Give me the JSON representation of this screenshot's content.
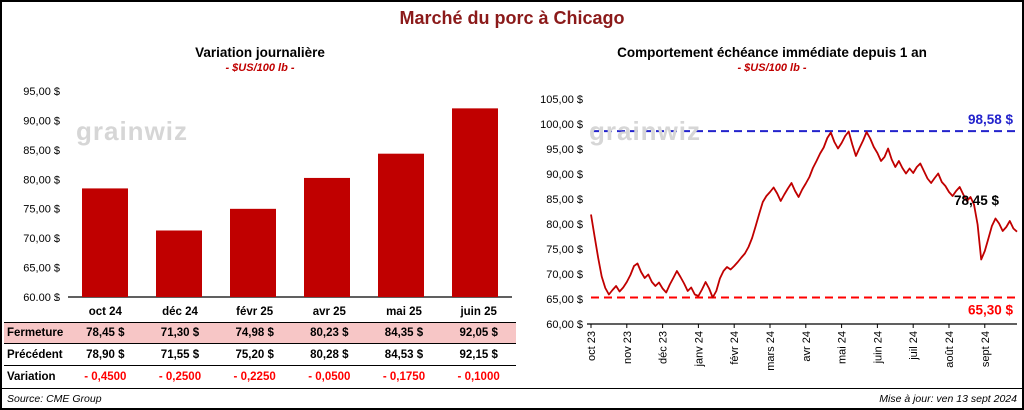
{
  "page": {
    "title": "Marché du porc à Chicago",
    "source": "Source: CME Group",
    "updated": "Mise à jour: ven 13 sept 2024"
  },
  "watermark": "grainwiz",
  "colors": {
    "title_red": "#8B1A1A",
    "accent": "#C00000",
    "bright_red": "#FF0000",
    "blue": "#2323CC",
    "fermeture_bg": "#F7C6C6",
    "watermark_gray": "#D6D6D6"
  },
  "chart_data": [
    {
      "type": "bar",
      "title": "Variation journalière",
      "subtitle": "- $US/100 lb -",
      "categories": [
        "oct 24",
        "déc 24",
        "févr 25",
        "avr 25",
        "mai 25",
        "juin 25"
      ],
      "values": [
        78.45,
        71.3,
        74.98,
        80.23,
        84.35,
        92.05
      ],
      "ylim": [
        60,
        95
      ],
      "ytick_values": [
        60,
        65,
        70,
        75,
        80,
        85,
        90,
        95
      ],
      "ytick_labels": [
        "60,00 $",
        "65,00 $",
        "70,00 $",
        "75,00 $",
        "80,00 $",
        "85,00 $",
        "90,00 $",
        "95,00 $"
      ],
      "bar_color": "#C00000",
      "grid": false,
      "legend": false
    },
    {
      "type": "line",
      "title": "Comportement échéance immédiate depuis 1 an",
      "subtitle": "- $US/100 lb -",
      "x_labels": [
        "oct 23",
        "nov 23",
        "déc 23",
        "janv 24",
        "févr 24",
        "mars 24",
        "avr 24",
        "mai 24",
        "juin 24",
        "juil 24",
        "août 24",
        "sept 24"
      ],
      "points_per_month": 10,
      "values": [
        81.9,
        77.5,
        73.2,
        69.5,
        67.2,
        65.9,
        66.8,
        67.6,
        66.5,
        67.3,
        68.4,
        69.8,
        71.6,
        72.1,
        70.4,
        69.2,
        69.9,
        68.4,
        67.6,
        68.3,
        67.1,
        66.3,
        67.9,
        69.2,
        70.6,
        69.4,
        68.1,
        66.6,
        67.3,
        65.9,
        65.6,
        66.9,
        68.4,
        67.1,
        65.3,
        66.6,
        69.1,
        70.6,
        71.4,
        70.9,
        71.6,
        72.4,
        73.3,
        74.1,
        75.4,
        77.2,
        79.6,
        82.1,
        84.4,
        85.6,
        86.4,
        87.3,
        86.1,
        84.6,
        85.9,
        87.1,
        88.2,
        86.6,
        85.4,
        86.9,
        88.1,
        89.4,
        91.2,
        92.6,
        94.1,
        95.3,
        97.2,
        98.3,
        96.4,
        95.1,
        96.2,
        97.6,
        98.5,
        95.9,
        93.6,
        95.2,
        96.7,
        98.4,
        97.1,
        95.4,
        94.2,
        92.6,
        93.4,
        95.1,
        92.9,
        91.4,
        92.6,
        91.2,
        90.1,
        91.1,
        90.2,
        91.4,
        92.1,
        90.6,
        89.1,
        88.2,
        89.2,
        90.1,
        88.4,
        87.6,
        86.4,
        85.6,
        86.6,
        87.4,
        85.9,
        84.6,
        85.4,
        83.9,
        79.9,
        72.9,
        74.6,
        77.1,
        79.6,
        81.1,
        80.1,
        78.6,
        79.4,
        80.6,
        79.1,
        78.45
      ],
      "ylim": [
        60,
        105
      ],
      "ytick_values": [
        60,
        65,
        70,
        75,
        80,
        85,
        90,
        95,
        100,
        105
      ],
      "ytick_labels": [
        "60,00 $",
        "65,00 $",
        "70,00 $",
        "75,00 $",
        "80,00 $",
        "85,00 $",
        "90,00 $",
        "95,00 $",
        "100,00 $",
        "105,00 $"
      ],
      "line_color": "#C00000",
      "annotations": {
        "resistance": {
          "value": 98.58,
          "label": "98,58 $",
          "style": "dashed",
          "color_key": "blue"
        },
        "support": {
          "value": 65.3,
          "label": "65,30 $",
          "style": "dashed",
          "color_key": "bright_red"
        },
        "last_close": {
          "value": 78.45,
          "label": "78,45 $",
          "color_key": "black"
        }
      },
      "grid": false,
      "legend": false
    }
  ],
  "table": {
    "rows": [
      {
        "key": "fermeture",
        "label": "Fermeture",
        "values": [
          "78,45 $",
          "71,30 $",
          "74,98 $",
          "80,23 $",
          "84,35 $",
          "92,05 $"
        ]
      },
      {
        "key": "precedent",
        "label": "Précédent",
        "values": [
          "78,90 $",
          "71,55 $",
          "75,20 $",
          "80,28 $",
          "84,53 $",
          "92,15 $"
        ]
      },
      {
        "key": "variation",
        "label": "Variation",
        "values": [
          "- 0,4500",
          "- 0,2500",
          "- 0,2250",
          "- 0,0500",
          "- 0,1750",
          "- 0,1000"
        ]
      }
    ]
  }
}
